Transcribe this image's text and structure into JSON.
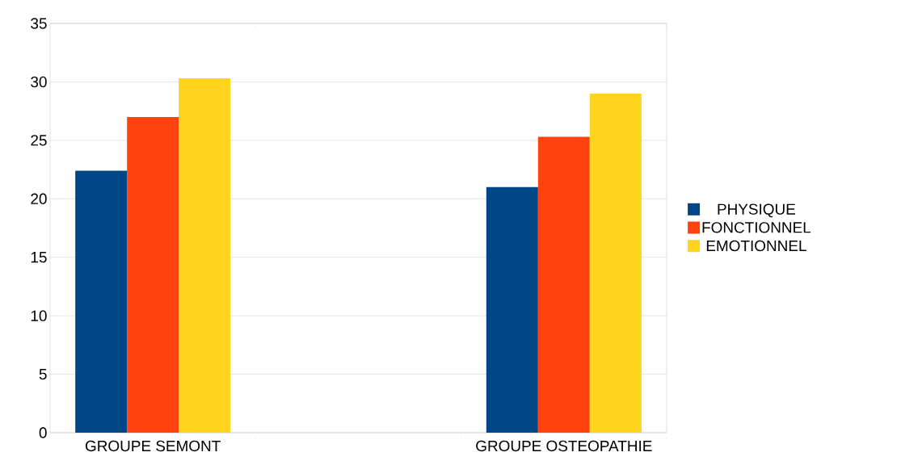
{
  "chart_data": {
    "type": "bar",
    "categories": [
      "GROUPE SEMONT",
      null,
      "GROUPE OSTEOPATHIE"
    ],
    "series": [
      {
        "name": "PHYSIQUE",
        "color": "#004586",
        "values": [
          22.4,
          null,
          21
        ]
      },
      {
        "name": "FONCTIONNEL",
        "color": "#ff420e",
        "values": [
          27,
          null,
          25.3
        ]
      },
      {
        "name": "EMOTIONNEL",
        "color": "#ffd320",
        "values": [
          30.3,
          null,
          29
        ]
      }
    ],
    "ylim": [
      0,
      35
    ],
    "yticks": [
      0,
      5,
      10,
      15,
      20,
      25,
      30,
      35
    ],
    "grid": "y",
    "legend": "right"
  }
}
